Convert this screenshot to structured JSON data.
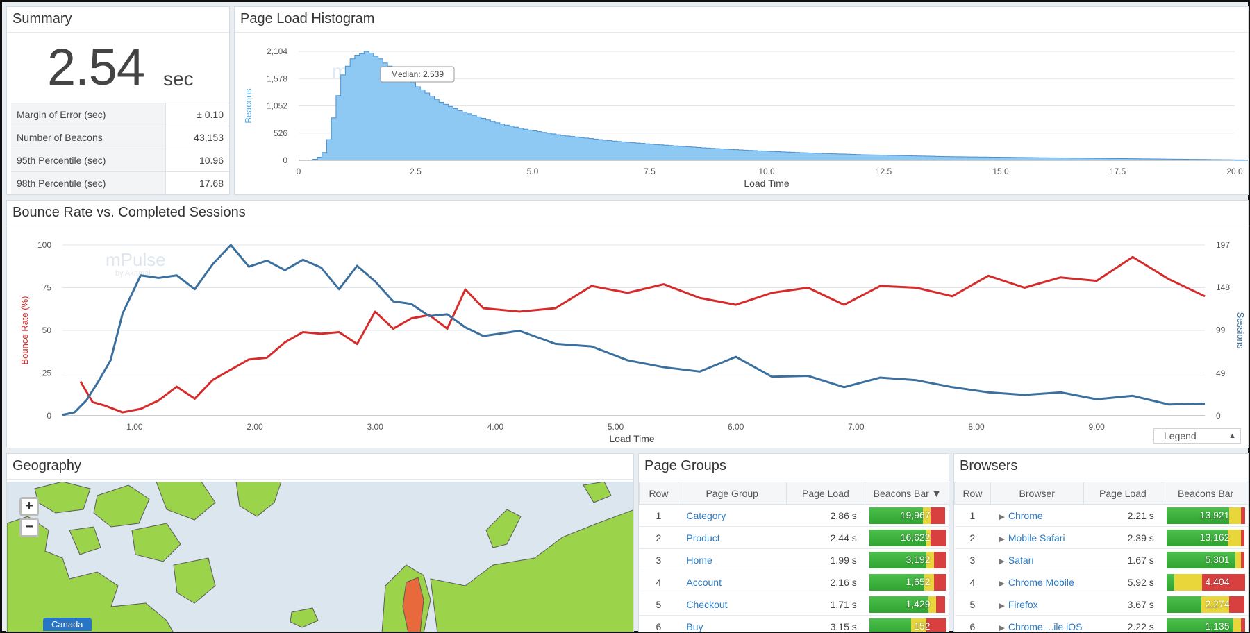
{
  "summary": {
    "title": "Summary",
    "value": "2.54",
    "unit": "sec",
    "stats": [
      {
        "label": "Margin of Error (sec)",
        "value": "± 0.10"
      },
      {
        "label": "Number of Beacons",
        "value": "43,153"
      },
      {
        "label": "95th Percentile (sec)",
        "value": "10.96"
      },
      {
        "label": "98th Percentile (sec)",
        "value": "17.68"
      }
    ]
  },
  "histogram": {
    "title": "Page Load Histogram",
    "watermark": "mPulse",
    "tooltip": "Median: 2.539",
    "chart_data": {
      "type": "area",
      "xlabel": "Load Time",
      "ylabel": "Beacons",
      "xlim": [
        0,
        20
      ],
      "ylim": [
        0,
        2104
      ],
      "x_ticks": [
        "0",
        "2.5",
        "5.0",
        "7.5",
        "10.0",
        "12.5",
        "15.0",
        "17.5",
        "20.0"
      ],
      "y_ticks": [
        "0",
        "526",
        "1,052",
        "1,578",
        "2,104"
      ],
      "bin_width": 0.1,
      "values": [
        0,
        0,
        5,
        20,
        60,
        150,
        400,
        820,
        1250,
        1650,
        1820,
        1960,
        2030,
        2060,
        2104,
        2070,
        2010,
        1960,
        1880,
        1820,
        1750,
        1690,
        1620,
        1560,
        1500,
        1420,
        1360,
        1300,
        1240,
        1180,
        1120,
        1080,
        1040,
        1000,
        960,
        930,
        900,
        870,
        840,
        810,
        780,
        750,
        725,
        700,
        680,
        660,
        640,
        620,
        600,
        585,
        570,
        555,
        540,
        525,
        510,
        495,
        480,
        470,
        460,
        450,
        440,
        430,
        420,
        410,
        400,
        390,
        380,
        372,
        364,
        356,
        348,
        340,
        333,
        326,
        319,
        312,
        305,
        298,
        291,
        284,
        278,
        272,
        266,
        260,
        254,
        248,
        242,
        236,
        231,
        226,
        221,
        216,
        211,
        206,
        201,
        196,
        191,
        187,
        183,
        179,
        175,
        171,
        167,
        163,
        159,
        155,
        151,
        147,
        144,
        141,
        138,
        135,
        132,
        129,
        126,
        123,
        120,
        117,
        114,
        111,
        108,
        106,
        104,
        102,
        100,
        98,
        96,
        94,
        92,
        90,
        88,
        86,
        84,
        82,
        80,
        78,
        76,
        74,
        72,
        70,
        69,
        68,
        67,
        66,
        65,
        64,
        63,
        62,
        61,
        60,
        59,
        58,
        57,
        56,
        55,
        54,
        53,
        52,
        51,
        50,
        49,
        48,
        47,
        46,
        45,
        44,
        43,
        42,
        41,
        40,
        39,
        38,
        37,
        36,
        35,
        34,
        33,
        32,
        31,
        30,
        29,
        28,
        27,
        26,
        25,
        24,
        23,
        22,
        21,
        20,
        19,
        18,
        17,
        16,
        15,
        14,
        13,
        12,
        11,
        10,
        9,
        8,
        7
      ]
    }
  },
  "bounce": {
    "title": "Bounce Rate vs. Completed Sessions",
    "watermark": "mPulse",
    "watermark_sub": "by Akamai",
    "legend_button": "Legend",
    "chart_data": {
      "type": "line",
      "xlabel": "Load Time",
      "ylabel_left": "Bounce Rate (%)",
      "ylabel_right": "Sessions",
      "xlim": [
        0.4,
        9.9
      ],
      "ylim_left": [
        0,
        100
      ],
      "ylim_right": [
        0,
        197
      ],
      "x_ticks": [
        "1.00",
        "2.00",
        "3.00",
        "4.00",
        "5.00",
        "6.00",
        "7.00",
        "8.00",
        "9.00"
      ],
      "y_ticks_left": [
        "0",
        "25",
        "50",
        "75",
        "100"
      ],
      "y_ticks_right": [
        "0",
        "49",
        "99",
        "148",
        "197"
      ],
      "series": [
        {
          "axis": "left",
          "color": "#d62b2b",
          "x": [
            0.55,
            0.65,
            0.75,
            0.9,
            1.05,
            1.2,
            1.35,
            1.5,
            1.65,
            1.8,
            1.95,
            2.1,
            2.25,
            2.4,
            2.55,
            2.7,
            2.85,
            3.0,
            3.15,
            3.3,
            3.45,
            3.6,
            3.75,
            3.9,
            4.2,
            4.5,
            4.8,
            5.1,
            5.4,
            5.7,
            6.0,
            6.3,
            6.6,
            6.9,
            7.2,
            7.5,
            7.8,
            8.1,
            8.4,
            8.7,
            9.0,
            9.3,
            9.6,
            9.9
          ],
          "y": [
            20,
            8,
            6,
            2,
            4,
            9,
            17,
            10,
            21,
            27,
            33,
            34,
            43,
            49,
            48,
            49,
            42,
            61,
            51,
            57,
            59,
            51,
            74,
            63,
            61,
            63,
            76,
            72,
            77,
            69,
            65,
            72,
            75,
            65,
            76,
            75,
            70,
            82,
            75,
            81,
            79,
            93,
            80,
            70
          ]
        },
        {
          "axis": "right",
          "color": "#3a6f9e",
          "x": [
            0.4,
            0.5,
            0.6,
            0.7,
            0.8,
            0.9,
            1.05,
            1.2,
            1.35,
            1.5,
            1.65,
            1.8,
            1.95,
            2.1,
            2.25,
            2.4,
            2.55,
            2.7,
            2.85,
            3.0,
            3.15,
            3.3,
            3.45,
            3.6,
            3.75,
            3.9,
            4.2,
            4.5,
            4.8,
            5.1,
            5.4,
            5.7,
            6.0,
            6.3,
            6.6,
            6.9,
            7.2,
            7.5,
            7.8,
            8.1,
            8.4,
            8.7,
            9.0,
            9.3,
            9.6,
            9.9
          ],
          "y": [
            1,
            4,
            18,
            40,
            64,
            118,
            162,
            159,
            162,
            146,
            175,
            197,
            172,
            179,
            168,
            180,
            171,
            146,
            173,
            155,
            132,
            129,
            115,
            117,
            102,
            92,
            98,
            83,
            80,
            64,
            56,
            51,
            68,
            45,
            46,
            33,
            44,
            41,
            33,
            27,
            24,
            27,
            19,
            23,
            13,
            14
          ]
        }
      ]
    }
  },
  "geo": {
    "title": "Geography",
    "zoom_in": "+",
    "zoom_out": "−",
    "region_label": "Canada",
    "colors": {
      "water": "#dbe6ef",
      "land_good": "#9bd34b",
      "land_warn": "#e8e04a",
      "land_bad": "#e86a3c"
    }
  },
  "page_groups": {
    "title": "Page Groups",
    "headers": [
      "Row",
      "Page Group",
      "Page Load",
      "Beacons Bar"
    ],
    "sort_indicator": "▼",
    "rows": [
      {
        "row": "1",
        "name": "Category",
        "load": "2.86 s",
        "beacons": "19,967",
        "bar": [
          0.7,
          0.1,
          0.2
        ]
      },
      {
        "row": "2",
        "name": "Product",
        "load": "2.44 s",
        "beacons": "16,622",
        "bar": [
          0.75,
          0.05,
          0.2
        ]
      },
      {
        "row": "3",
        "name": "Home",
        "load": "1.99 s",
        "beacons": "3,192",
        "bar": [
          0.75,
          0.1,
          0.15
        ]
      },
      {
        "row": "4",
        "name": "Account",
        "load": "2.16 s",
        "beacons": "1,652",
        "bar": [
          0.72,
          0.13,
          0.15
        ]
      },
      {
        "row": "5",
        "name": "Checkout",
        "load": "1.71 s",
        "beacons": "1,429",
        "bar": [
          0.78,
          0.1,
          0.12
        ]
      },
      {
        "row": "6",
        "name": "Buy",
        "load": "3.15 s",
        "beacons": "152",
        "bar": [
          0.55,
          0.2,
          0.25
        ]
      }
    ]
  },
  "browsers": {
    "title": "Browsers",
    "headers": [
      "Row",
      "Browser",
      "Page Load",
      "Beacons Bar"
    ],
    "rows": [
      {
        "row": "1",
        "name": "Chrome",
        "load": "2.21 s",
        "beacons": "13,921",
        "bar": [
          0.8,
          0.15,
          0.05
        ]
      },
      {
        "row": "2",
        "name": "Mobile Safari",
        "load": "2.39 s",
        "beacons": "13,162",
        "bar": [
          0.78,
          0.17,
          0.05
        ]
      },
      {
        "row": "3",
        "name": "Safari",
        "load": "1.67 s",
        "beacons": "5,301",
        "bar": [
          0.88,
          0.07,
          0.05
        ]
      },
      {
        "row": "4",
        "name": "Chrome Mobile",
        "load": "5.92 s",
        "beacons": "4,404",
        "bar": [
          0.1,
          0.35,
          0.55
        ]
      },
      {
        "row": "5",
        "name": "Firefox",
        "load": "3.67 s",
        "beacons": "2,274",
        "bar": [
          0.45,
          0.35,
          0.2
        ]
      },
      {
        "row": "6",
        "name": "Chrome ...ile iOS",
        "load": "2.22 s",
        "beacons": "1,135",
        "bar": [
          0.85,
          0.1,
          0.05
        ]
      }
    ]
  }
}
